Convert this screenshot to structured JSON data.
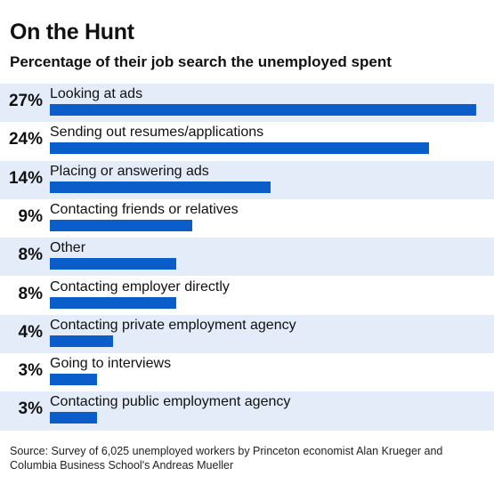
{
  "header": {
    "title": "On the Hunt",
    "subtitle": "Percentage of their job search the unemployed spent"
  },
  "footer": {
    "source": "Source: Survey of 6,025 unemployed workers by Princeton economist Alan Krueger and Columbia Business School's Andreas Mueller"
  },
  "colors": {
    "bar": "#0b5ec9",
    "row_shade": "#e3ecf8"
  },
  "chart_data": {
    "type": "bar",
    "orientation": "horizontal",
    "title": "On the Hunt",
    "subtitle": "Percentage of their job search the unemployed spent",
    "categories": [
      "Looking at ads",
      "Sending out resumes/applications",
      "Placing or answering ads",
      "Contacting friends or relatives",
      "Other",
      "Contacting employer directly",
      "Contacting private employment agency",
      "Going to interviews",
      "Contacting public employment agency"
    ],
    "values": [
      27,
      24,
      14,
      9,
      8,
      8,
      4,
      3,
      3
    ],
    "value_labels": [
      "27%",
      "24%",
      "14%",
      "9%",
      "8%",
      "8%",
      "4%",
      "3%",
      "3%"
    ],
    "unit": "%",
    "xlim": [
      0,
      27
    ],
    "grid": false,
    "legend": "none"
  }
}
